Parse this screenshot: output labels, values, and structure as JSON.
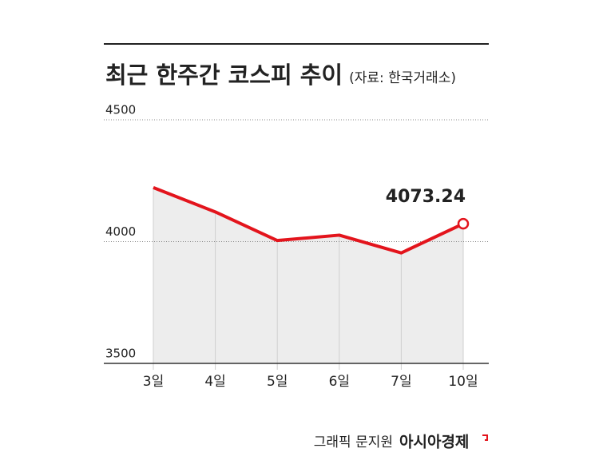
{
  "chart_data": {
    "type": "line",
    "title": "최근 한주간 코스피 추이",
    "subtitle": "(자료: 한국거래소)",
    "categories": [
      "3일",
      "4일",
      "5일",
      "6일",
      "7일",
      "10일"
    ],
    "series": [
      {
        "name": "코스피",
        "color": "#e3141c",
        "values": [
          4221.87,
          4121.74,
          4004.42,
          4026.45,
          3953.62,
          4073.24
        ]
      }
    ],
    "ylim": [
      3500,
      4500
    ],
    "yticks": [
      3500,
      4000,
      4500
    ],
    "grid": true,
    "area_color": "#ededed"
  },
  "footer": {
    "credit": "그래픽 문지원",
    "logo": "아시아경제"
  }
}
